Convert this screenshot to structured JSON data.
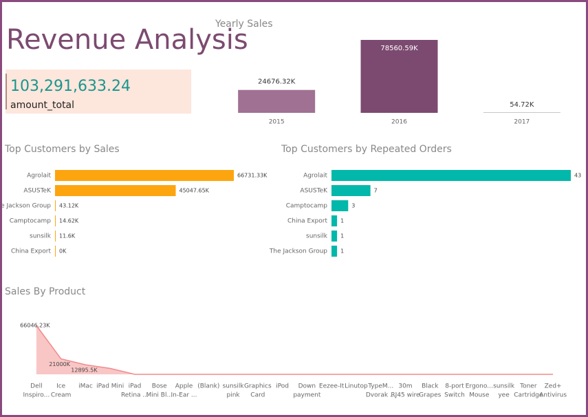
{
  "header": {
    "title": "Revenue Analysis"
  },
  "kpi": {
    "value": "103,291,633.24",
    "label": "amount_total"
  },
  "chart_data": [
    {
      "type": "bar",
      "title": "Yearly Sales",
      "categories": [
        "2015",
        "2016",
        "2017"
      ],
      "values": [
        24676.32,
        78560.59,
        54.72
      ],
      "value_labels": [
        "24676.32K",
        "78560.59K",
        "54.72K"
      ],
      "colors": [
        "#a07193",
        "#7c4a70",
        "#c8c8c8"
      ]
    },
    {
      "type": "hbar",
      "title": "Top Customers by Sales",
      "categories": [
        "Agrolait",
        "ASUSTeK",
        "The Jackson Group",
        "Camptocamp",
        "sunsilk",
        "China Export"
      ],
      "values": [
        66731.33,
        45047.65,
        43.12,
        14.62,
        11.6,
        0
      ],
      "value_labels": [
        "66731.33K",
        "45047.65K",
        "43.12K",
        "14.62K",
        "11.6K",
        "0K"
      ],
      "color": "#fda50f"
    },
    {
      "type": "hbar",
      "title": "Top Customers by Repeated Orders",
      "categories": [
        "Agrolait",
        "ASUSTeK",
        "Camptocamp",
        "China Export",
        "sunsilk",
        "The Jackson Group"
      ],
      "values": [
        43,
        7,
        3,
        1,
        1,
        1
      ],
      "color": "#01b8aa"
    },
    {
      "type": "area",
      "title": "Sales By Product",
      "categories": [
        [
          "Dell",
          "Inspiro..."
        ],
        [
          "Ice",
          "Cream"
        ],
        [
          "iMac"
        ],
        [
          "iPad Mini"
        ],
        [
          "iPad",
          "Retina ..."
        ],
        [
          "Bose",
          "Mini Bl..."
        ],
        [
          "Apple",
          "In-Ear ..."
        ],
        [
          "(Blank)"
        ],
        [
          "sunsilk",
          "pink"
        ],
        [
          "Graphics",
          "Card"
        ],
        [
          "iPod"
        ],
        [
          "Down",
          "payment"
        ],
        [
          "Eezee-It"
        ],
        [
          "Linutop"
        ],
        [
          "TypeM...",
          "Dvorak ..."
        ],
        [
          "30m",
          "RJ45 wire"
        ],
        [
          "Black",
          "Grapes"
        ],
        [
          "8-port",
          "Switch"
        ],
        [
          "Ergono...",
          "Mouse"
        ],
        [
          "sunsilk",
          "yee"
        ],
        [
          "Toner",
          "Cartridge"
        ],
        [
          "Zed+",
          "Antivirus"
        ]
      ],
      "values": [
        66046.23,
        21000,
        12895.5,
        8000,
        0,
        0,
        0,
        0,
        0,
        0,
        0,
        0,
        0,
        0,
        0,
        0,
        0,
        0,
        0,
        0,
        0,
        0
      ],
      "value_labels": [
        "66046.23K",
        "21000K",
        "12895.5K",
        null,
        null,
        null,
        null,
        null,
        null,
        null,
        null,
        null,
        null,
        null,
        null,
        null,
        null,
        null,
        null,
        null,
        null,
        null
      ],
      "color": "#f08a8a"
    }
  ]
}
